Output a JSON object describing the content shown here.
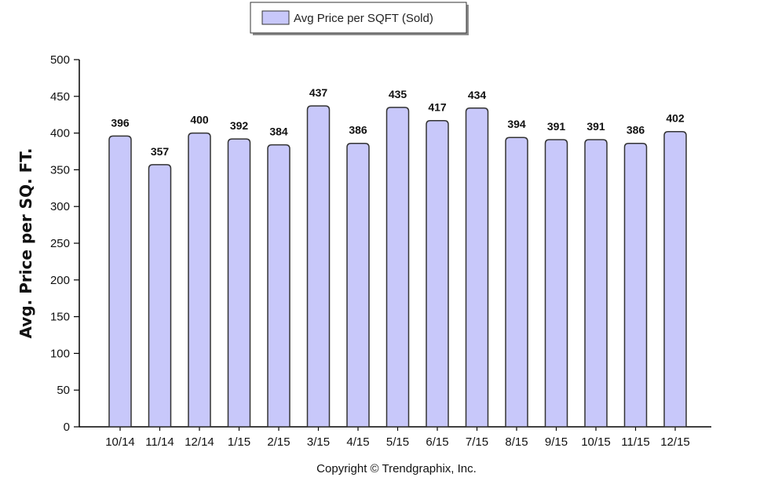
{
  "legend": {
    "label": "Avg Price per SQFT (Sold)"
  },
  "footer": {
    "copyright": "Copyright © Trendgraphix, Inc."
  },
  "colors": {
    "bar_fill": "#c8c8fa",
    "bar_stroke": "#333333",
    "axis": "#000000"
  },
  "chart_data": {
    "type": "bar",
    "title": "",
    "xlabel": "",
    "ylabel": "Avg. Price per SQ. FT.",
    "ylim": [
      0,
      500
    ],
    "yticks": [
      0,
      50,
      100,
      150,
      200,
      250,
      300,
      350,
      400,
      450,
      500
    ],
    "grid": false,
    "legend_position": "top-center",
    "categories": [
      "10/14",
      "11/14",
      "12/14",
      "1/15",
      "2/15",
      "3/15",
      "4/15",
      "5/15",
      "6/15",
      "7/15",
      "8/15",
      "9/15",
      "10/15",
      "11/15",
      "12/15"
    ],
    "series": [
      {
        "name": "Avg Price per SQFT (Sold)",
        "values": [
          396,
          357,
          400,
          392,
          384,
          437,
          386,
          435,
          417,
          434,
          394,
          391,
          391,
          386,
          402
        ]
      }
    ]
  }
}
